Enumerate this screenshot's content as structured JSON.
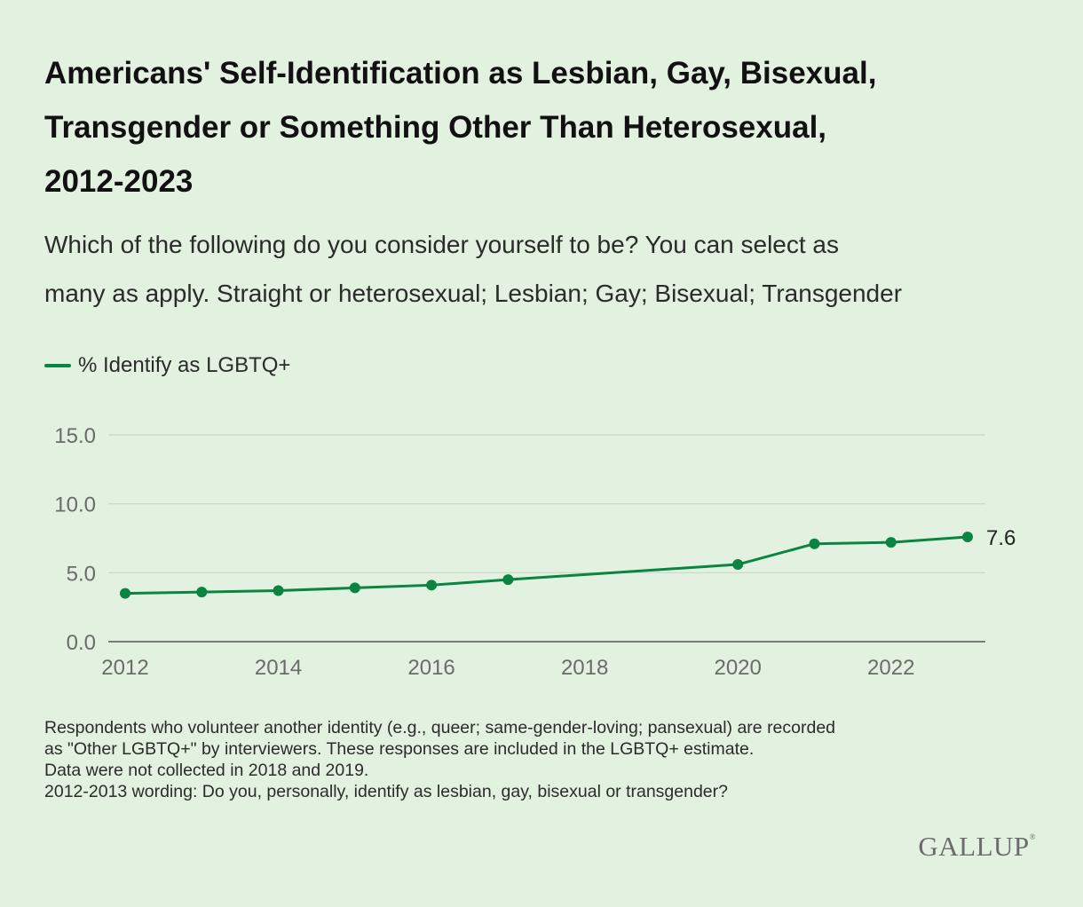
{
  "title_lines": [
    "Americans' Self-Identification as Lesbian, Gay, Bisexual,",
    "Transgender or Something Other Than Heterosexual,",
    "2012-2023"
  ],
  "subtitle_lines": [
    "Which of the following do you consider yourself to be? You can select as",
    "many as apply. Straight or heterosexual; Lesbian; Gay; Bisexual; Transgender"
  ],
  "notes": [
    "Respondents who volunteer another identity (e.g., queer; same-gender-loving; pansexual) are recorded",
    "as \"Other LGBTQ+\" by interviewers. These responses are included in the LGBTQ+ estimate.",
    "Data were not collected in 2018 and 2019.",
    "2012-2013 wording: Do you, personally, identify as lesbian, gay, bisexual or transgender?"
  ],
  "logo": "GALLUP",
  "colors": {
    "background": "#e3f1e0",
    "series": "#098441",
    "grid": "#c9d6c6",
    "axis": "#555555"
  },
  "chart_data": {
    "type": "line",
    "legend_position": "top-left",
    "grid": true,
    "xlim": [
      2012,
      2023
    ],
    "ylim": [
      0,
      15
    ],
    "x_ticks": [
      "2012",
      "2014",
      "2016",
      "2018",
      "2020",
      "2022"
    ],
    "y_ticks": [
      "15.0",
      "10.0",
      "5.0",
      "0.0"
    ],
    "series": [
      {
        "name": "% Identify as LGBTQ+",
        "x": [
          2012,
          2013,
          2014,
          2015,
          2016,
          2017,
          2020,
          2021,
          2022,
          2023
        ],
        "y": [
          3.5,
          3.6,
          3.7,
          3.9,
          4.1,
          4.5,
          5.6,
          7.1,
          7.2,
          7.6
        ]
      }
    ],
    "end_label": "7.6"
  }
}
